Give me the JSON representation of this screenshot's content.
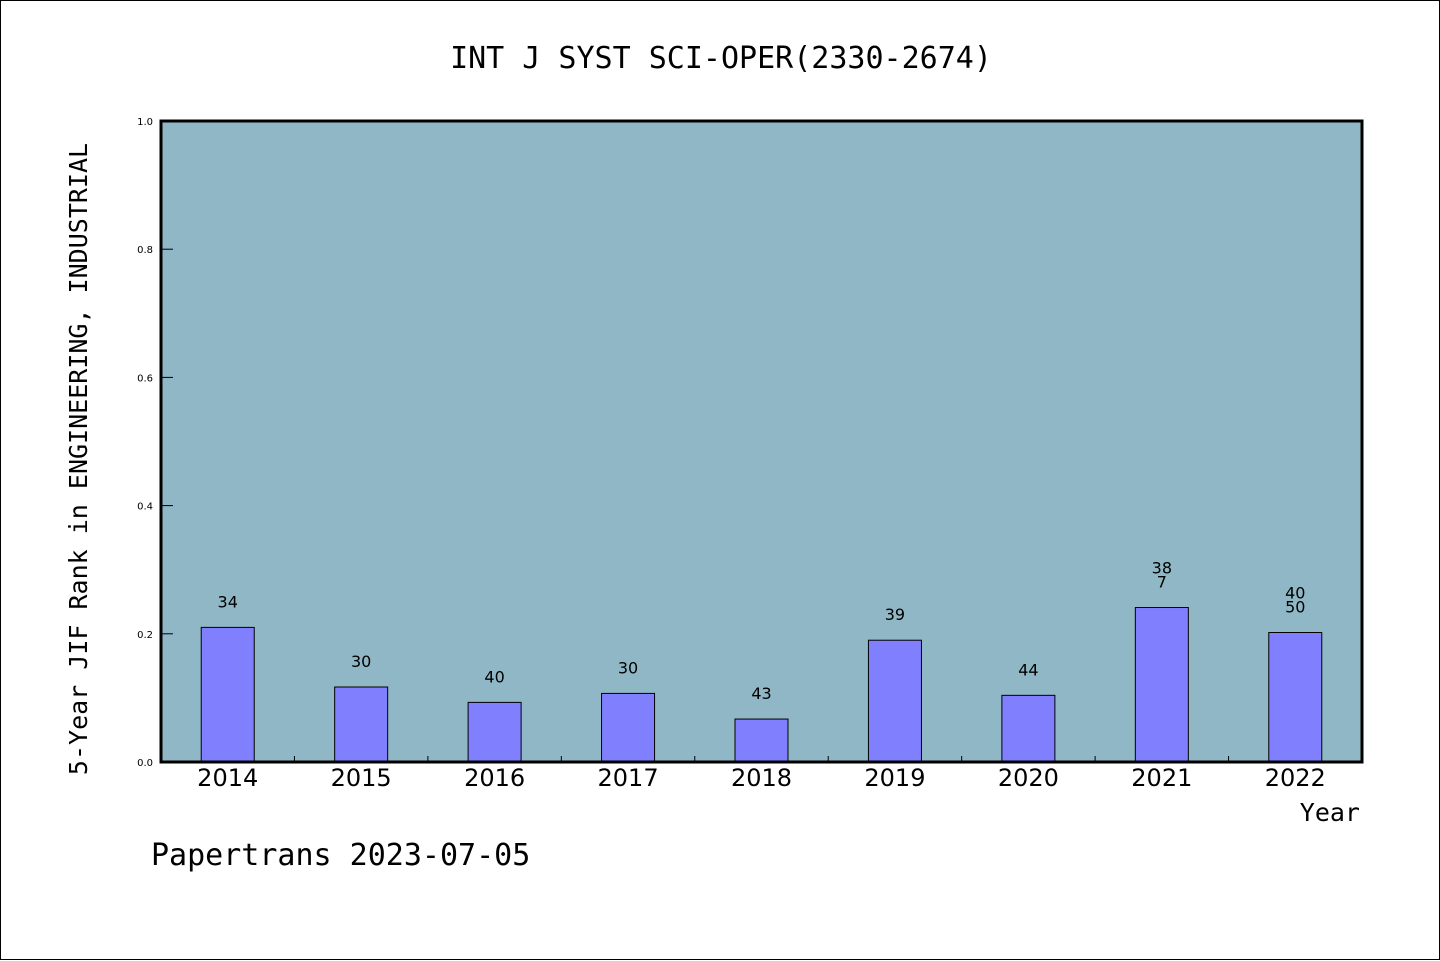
{
  "chart_data": {
    "type": "bar",
    "title": "INT J SYST SCI-OPER(2330-2674)",
    "xlabel": "Year",
    "ylabel": "5-Year JIF Rank in ENGINEERING, INDUSTRIAL",
    "categories": [
      "2014",
      "2015",
      "2016",
      "2017",
      "2018",
      "2019",
      "2020",
      "2021",
      "2022"
    ],
    "values": [
      0.21,
      0.117,
      0.093,
      0.107,
      0.067,
      0.19,
      0.104,
      0.241,
      0.202
    ],
    "bar_labels": [
      [
        "34"
      ],
      [
        "30"
      ],
      [
        "40"
      ],
      [
        "30"
      ],
      [
        "43"
      ],
      [
        "39"
      ],
      [
        "44"
      ],
      [
        "38",
        "7"
      ],
      [
        "40",
        "50"
      ]
    ],
    "ylim": [
      0,
      1.0
    ],
    "yticks": [
      "0.0",
      "0.2",
      "0.4",
      "0.6",
      "0.8",
      "1.0"
    ],
    "grid": false,
    "colors": {
      "plot_background": "#90b7c5",
      "bar_fill": "#8080ff",
      "bar_stroke": "#000000"
    }
  },
  "footer": "Papertrans 2023-07-05"
}
